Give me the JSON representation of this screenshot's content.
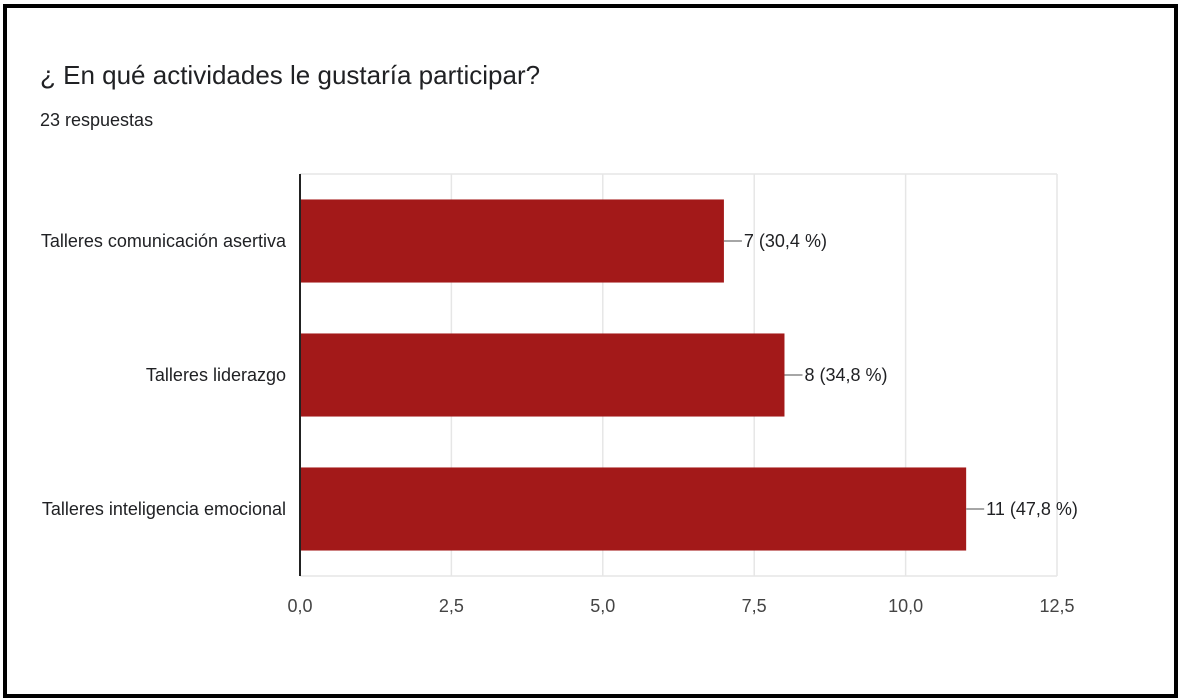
{
  "header": {
    "title": "¿ En qué actividades le gustaría participar?",
    "subtitle": "23 respuestas"
  },
  "colors": {
    "bar": "#a31919",
    "grid": "#e6e6e6",
    "axis": "#222222",
    "text": "#202124"
  },
  "chart_data": {
    "type": "bar",
    "orientation": "horizontal",
    "title": "¿ En qué actividades le gustaría participar?",
    "subtitle": "23 respuestas",
    "categories": [
      "Talleres comunicación asertiva",
      "Talleres liderazgo",
      "Talleres inteligencia emocional"
    ],
    "values": [
      7,
      8,
      11
    ],
    "data_labels": [
      "7 (30,4 %)",
      "8 (34,8 %)",
      "11 (47,8 %)"
    ],
    "x_ticks": [
      0,
      2.5,
      5,
      7.5,
      10,
      12.5
    ],
    "x_tick_labels": [
      "0,0",
      "2,5",
      "5,0",
      "7,5",
      "10,0",
      "12,5"
    ],
    "xlim": [
      0,
      12.5
    ],
    "grid": true,
    "xlabel": "",
    "ylabel": ""
  }
}
